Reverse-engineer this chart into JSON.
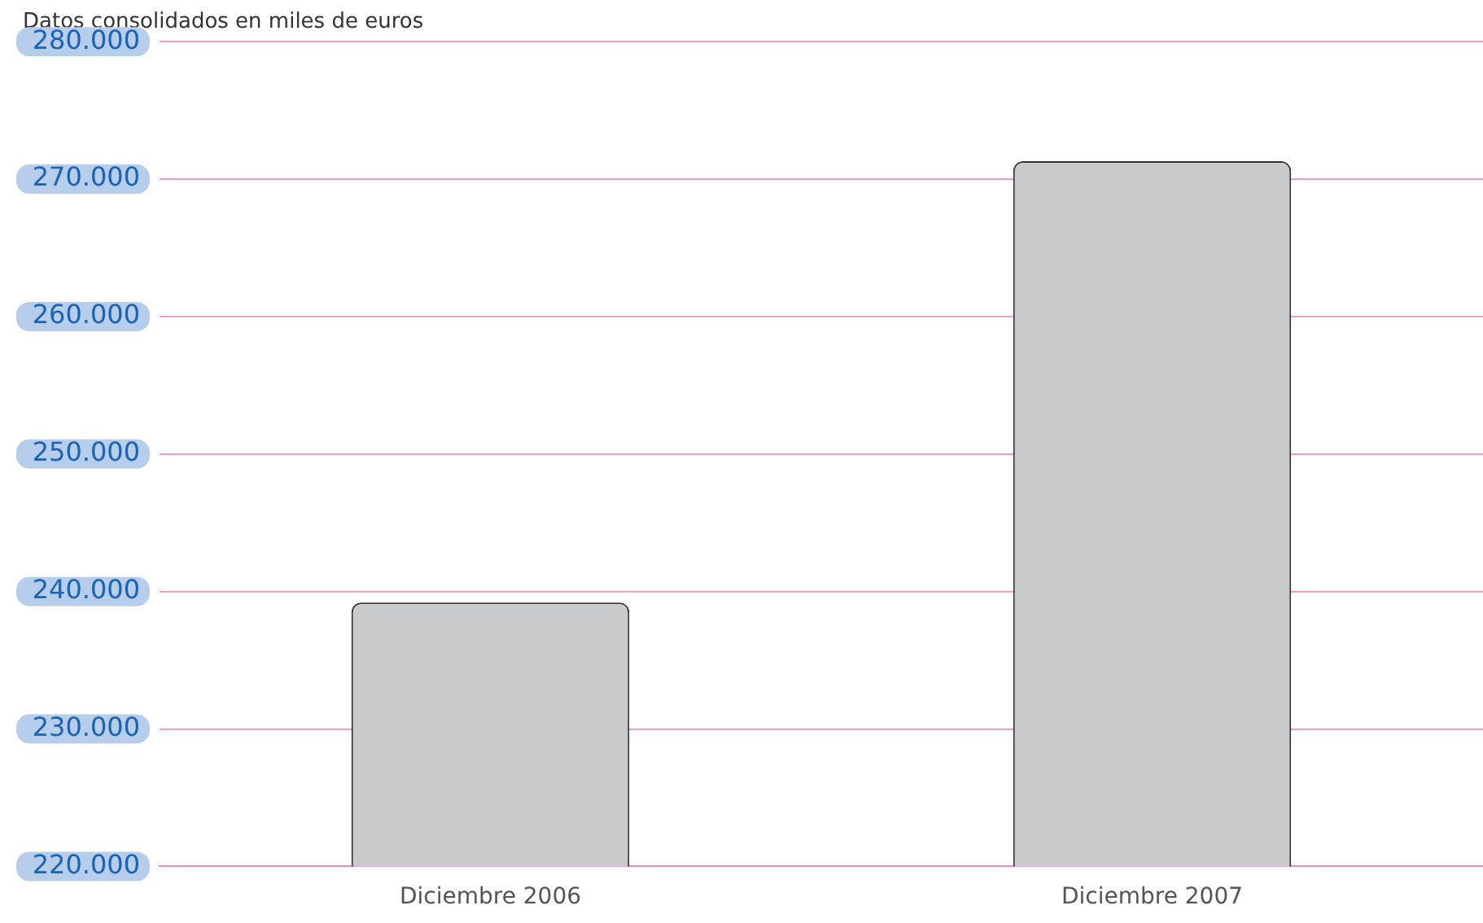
{
  "chart_data": {
    "type": "bar",
    "title": "Datos consolidados en miles de euros",
    "categories": [
      "Diciembre 2006",
      "Diciembre 2007"
    ],
    "values": [
      239200,
      271300
    ],
    "color": "#c9cacc",
    "ylim": [
      220000,
      280000
    ],
    "yticks": [
      {
        "value": 220000,
        "label": "220.000"
      },
      {
        "value": 230000,
        "label": "230.000"
      },
      {
        "value": 240000,
        "label": "240.000"
      },
      {
        "value": 250000,
        "label": "250.000"
      },
      {
        "value": 260000,
        "label": "260.000"
      },
      {
        "value": 270000,
        "label": "270.000"
      },
      {
        "value": 280000,
        "label": "280.000"
      }
    ],
    "grid": "y",
    "legend": false
  }
}
